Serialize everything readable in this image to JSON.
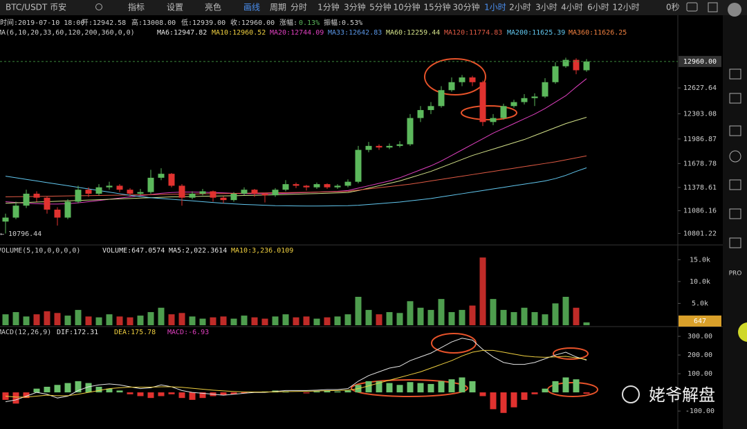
{
  "toolbar": {
    "symbol": "BTC/USDT 币安",
    "indicators": "指标",
    "settings": "设置",
    "theme": "亮色",
    "draw": "画线",
    "period": "周期",
    "periods": [
      "分时",
      "1分钟",
      "3分钟",
      "5分钟",
      "10分钟",
      "15分钟",
      "30分钟",
      "1小时",
      "2小时",
      "3小时",
      "4小时",
      "6小时",
      "12小时"
    ],
    "active_period": 7,
    "countdown": "0秒"
  },
  "info": {
    "time": "时间:2019-07-10 18:00",
    "open": "开:12942.58",
    "high": "高:13008.00",
    "low": "低:12939.00",
    "close": "收:12960.00",
    "change_label": "涨幅:",
    "change": "0.13%",
    "amplitude": "振幅:0.53%"
  },
  "chart_data": [
    {
      "type": "candlestick",
      "up_color": "#5cb85c",
      "down_color": "#e0322f",
      "ylim": [
        10674,
        13254
      ],
      "yticks": [
        12627.64,
        12303.08,
        11986.87,
        11678.78,
        11378.61,
        11086.16,
        10801.22
      ],
      "current": {
        "value": 12960,
        "label": "12960.00"
      },
      "low_note": "← 10796.44",
      "legend_title": "MA(6,10,20,33,60,120,200,360,0,0)",
      "legend": [
        {
          "text": "MA6:12947.82",
          "color": "#e6e6e6"
        },
        {
          "text": "MA10:12960.52",
          "color": "#f0d040"
        },
        {
          "text": "MA20:12744.09",
          "color": "#e040c0"
        },
        {
          "text": "MA33:12642.83",
          "color": "#5a96e6"
        },
        {
          "text": "MA60:12259.44",
          "color": "#d4e28a"
        },
        {
          "text": "MA120:11774.83",
          "color": "#e05a44"
        },
        {
          "text": "MA200:11625.39",
          "color": "#62c8f0"
        },
        {
          "text": "MA360:11626.25",
          "color": "#f08040"
        }
      ],
      "candles": [
        [
          10950,
          11050,
          10800,
          11000
        ],
        [
          11000,
          11200,
          10980,
          11150
        ],
        [
          11150,
          11350,
          11120,
          11300
        ],
        [
          11300,
          11330,
          11200,
          11250
        ],
        [
          11250,
          11270,
          11050,
          11100
        ],
        [
          11100,
          11130,
          10900,
          11000
        ],
        [
          11000,
          11230,
          10980,
          11200
        ],
        [
          11200,
          11400,
          11180,
          11350
        ],
        [
          11350,
          11380,
          11260,
          11300
        ],
        [
          11300,
          11420,
          11280,
          11380
        ],
        [
          11380,
          11450,
          11350,
          11400
        ],
        [
          11400,
          11420,
          11320,
          11350
        ],
        [
          11350,
          11370,
          11270,
          11300
        ],
        [
          11300,
          11360,
          11280,
          11320
        ],
        [
          11320,
          11600,
          11300,
          11500
        ],
        [
          11500,
          11620,
          11470,
          11550
        ],
        [
          11550,
          11560,
          11380,
          11400
        ],
        [
          11400,
          11420,
          11150,
          11250
        ],
        [
          11250,
          11330,
          11230,
          11300
        ],
        [
          11300,
          11360,
          11280,
          11330
        ],
        [
          11330,
          11340,
          11200,
          11250
        ],
        [
          11250,
          11270,
          11180,
          11220
        ],
        [
          11220,
          11320,
          11200,
          11300
        ],
        [
          11300,
          11380,
          11280,
          11350
        ],
        [
          11350,
          11360,
          11260,
          11300
        ],
        [
          11300,
          11310,
          11190,
          11280
        ],
        [
          11280,
          11370,
          11260,
          11350
        ],
        [
          11350,
          11470,
          11330,
          11420
        ],
        [
          11420,
          11440,
          11370,
          11400
        ],
        [
          11400,
          11410,
          11340,
          11380
        ],
        [
          11380,
          11440,
          11360,
          11420
        ],
        [
          11420,
          11430,
          11360,
          11380
        ],
        [
          11380,
          11420,
          11360,
          11400
        ],
        [
          11400,
          11480,
          11380,
          11450
        ],
        [
          11450,
          11900,
          11430,
          11850
        ],
        [
          11850,
          11950,
          11820,
          11900
        ],
        [
          11900,
          11920,
          11850,
          11880
        ],
        [
          11880,
          11930,
          11860,
          11900
        ],
        [
          11900,
          11960,
          11880,
          11920
        ],
        [
          11920,
          12300,
          11900,
          12250
        ],
        [
          12250,
          12400,
          12200,
          12350
        ],
        [
          12350,
          12450,
          12300,
          12400
        ],
        [
          12400,
          12650,
          12380,
          12600
        ],
        [
          12600,
          12760,
          12580,
          12700
        ],
        [
          12700,
          12790,
          12650,
          12760
        ],
        [
          12760,
          12780,
          12650,
          12700
        ],
        [
          12700,
          12720,
          12150,
          12200
        ],
        [
          12200,
          12300,
          12160,
          12250
        ],
        [
          12250,
          12430,
          12230,
          12400
        ],
        [
          12400,
          12480,
          12380,
          12450
        ],
        [
          12450,
          12550,
          12420,
          12500
        ],
        [
          12500,
          12560,
          12400,
          12520
        ],
        [
          12520,
          12750,
          12500,
          12700
        ],
        [
          12700,
          12950,
          12680,
          12900
        ],
        [
          12900,
          13008,
          12880,
          12980
        ],
        [
          12980,
          13000,
          12800,
          12850
        ],
        [
          12850,
          12990,
          12830,
          12960
        ]
      ],
      "lines": [
        {
          "color": "#e040c0",
          "values": [
            11200,
            11190,
            11180,
            11175,
            11170,
            11170,
            11175,
            11185,
            11200,
            11215,
            11230,
            11245,
            11260,
            11275,
            11290,
            11305,
            11315,
            11320,
            11320,
            11318,
            11315,
            11310,
            11305,
            11300,
            11300,
            11300,
            11302,
            11305,
            11310,
            11315,
            11320,
            11325,
            11330,
            11340,
            11370,
            11400,
            11430,
            11460,
            11500,
            11550,
            11600,
            11650,
            11710,
            11780,
            11850,
            11920,
            11990,
            12060,
            12120,
            12180,
            12240,
            12300,
            12370,
            12450,
            12530,
            12640,
            12744.09
          ]
        },
        {
          "color": "#d4e28a",
          "values": [
            11180,
            11185,
            11190,
            11195,
            11200,
            11205,
            11210,
            11215,
            11220,
            11225,
            11230,
            11235,
            11240,
            11245,
            11250,
            11255,
            11260,
            11262,
            11265,
            11268,
            11270,
            11272,
            11275,
            11278,
            11280,
            11283,
            11286,
            11290,
            11294,
            11298,
            11302,
            11306,
            11310,
            11315,
            11340,
            11370,
            11400,
            11430,
            11460,
            11500,
            11540,
            11580,
            11630,
            11680,
            11730,
            11780,
            11820,
            11860,
            11900,
            11940,
            11980,
            12030,
            12080,
            12130,
            12180,
            12220,
            12259.44
          ]
        },
        {
          "color": "#e05a44",
          "values": [
            11260,
            11262,
            11264,
            11266,
            11268,
            11270,
            11272,
            11274,
            11276,
            11278,
            11280,
            11282,
            11284,
            11286,
            11288,
            11290,
            11292,
            11294,
            11296,
            11298,
            11300,
            11302,
            11304,
            11306,
            11308,
            11310,
            11312,
            11314,
            11316,
            11318,
            11320,
            11323,
            11326,
            11330,
            11345,
            11360,
            11375,
            11390,
            11405,
            11420,
            11440,
            11460,
            11480,
            11500,
            11520,
            11540,
            11560,
            11580,
            11600,
            11620,
            11640,
            11660,
            11680,
            11700,
            11725,
            11750,
            11774.83
          ]
        },
        {
          "color": "#62c8f0",
          "values": [
            11520,
            11500,
            11480,
            11460,
            11440,
            11420,
            11400,
            11380,
            11360,
            11340,
            11320,
            11300,
            11280,
            11265,
            11250,
            11240,
            11230,
            11220,
            11210,
            11200,
            11190,
            11180,
            11172,
            11165,
            11160,
            11155,
            11150,
            11148,
            11146,
            11145,
            11145,
            11146,
            11148,
            11150,
            11155,
            11165,
            11175,
            11185,
            11195,
            11210,
            11225,
            11240,
            11260,
            11280,
            11300,
            11320,
            11340,
            11360,
            11380,
            11400,
            11420,
            11440,
            11460,
            11490,
            11530,
            11580,
            11625.39
          ]
        }
      ]
    },
    {
      "type": "bar",
      "legend_title": "VOLUME(5,10,0,0,0,0)",
      "legend": [
        {
          "text": "VOLUME:647.0574",
          "color": "#e6e6e6"
        },
        {
          "text": "MA5:2,022.3614",
          "color": "#e6e6e6"
        },
        {
          "text": "MA10:3,236.0109",
          "color": "#f0d040"
        }
      ],
      "ylim": [
        0,
        17900
      ],
      "yticks": [
        {
          "value": 5000,
          "label": "5.0k"
        },
        {
          "value": 10000,
          "label": "10.0k"
        },
        {
          "value": 15000,
          "label": "15.0k"
        }
      ],
      "current_label": "647",
      "values": [
        2500,
        3000,
        2000,
        2500,
        3200,
        2800,
        2200,
        3500,
        2000,
        1800,
        2500,
        2000,
        1800,
        2200,
        3000,
        4000,
        2500,
        2800,
        2000,
        1500,
        1800,
        2000,
        1500,
        2200,
        1800,
        1500,
        2000,
        2500,
        1800,
        2000,
        1500,
        1800,
        2000,
        2500,
        6500,
        3500,
        2500,
        3000,
        2800,
        5500,
        4000,
        3500,
        6000,
        3000,
        3500,
        4500,
        15500,
        6000,
        3500,
        3000,
        4000,
        3000,
        2500,
        5000,
        6500,
        4000,
        647.0574
      ]
    },
    {
      "type": "macd",
      "legend_title": "MACD(12,26,9)",
      "legend": [
        {
          "text": "DIF:172.31",
          "color": "#e6e6e6"
        },
        {
          "text": "DEA:175.78",
          "color": "#f0d040"
        },
        {
          "text": "MACD:-6.93",
          "color": "#e040c0"
        }
      ],
      "ylim": [
        -196,
        341
      ],
      "yticks": [
        {
          "value": 300,
          "label": "300.00"
        },
        {
          "value": 200,
          "label": "200.00"
        },
        {
          "value": 100,
          "label": "100.00"
        },
        {
          "value": -100,
          "label": "-100.00"
        }
      ],
      "dif": [
        -50,
        -40,
        -20,
        0,
        -10,
        -30,
        -20,
        10,
        30,
        40,
        45,
        40,
        30,
        20,
        25,
        40,
        30,
        10,
        0,
        -5,
        -10,
        -15,
        -10,
        -5,
        0,
        0,
        5,
        10,
        10,
        10,
        12,
        15,
        15,
        20,
        60,
        90,
        110,
        130,
        140,
        170,
        190,
        210,
        240,
        270,
        290,
        280,
        230,
        190,
        160,
        150,
        150,
        160,
        180,
        200,
        215,
        190,
        172.31
      ],
      "dea": [
        -20,
        -25,
        -25,
        -20,
        -15,
        -18,
        -18,
        -10,
        0,
        10,
        20,
        25,
        28,
        28,
        28,
        30,
        30,
        27,
        22,
        17,
        12,
        8,
        5,
        2,
        2,
        2,
        3,
        4,
        5,
        6,
        7,
        9,
        10,
        12,
        20,
        35,
        50,
        65,
        80,
        95,
        110,
        130,
        150,
        170,
        195,
        215,
        225,
        225,
        215,
        205,
        195,
        190,
        188,
        190,
        193,
        185,
        175.78
      ],
      "histogram": [
        -40,
        -60,
        -30,
        20,
        30,
        40,
        50,
        60,
        50,
        30,
        20,
        10,
        -10,
        -20,
        -30,
        -20,
        -10,
        -30,
        -40,
        -30,
        -20,
        -15,
        -10,
        -5,
        0,
        5,
        10,
        5,
        0,
        -5,
        5,
        10,
        5,
        10,
        40,
        60,
        60,
        50,
        40,
        55,
        50,
        45,
        60,
        70,
        80,
        60,
        -20,
        -90,
        -110,
        -80,
        -40,
        -10,
        20,
        60,
        80,
        70,
        -6.93
      ]
    }
  ],
  "sidebar": {
    "pro": "PRO"
  },
  "watermark": "姥爷解盘"
}
